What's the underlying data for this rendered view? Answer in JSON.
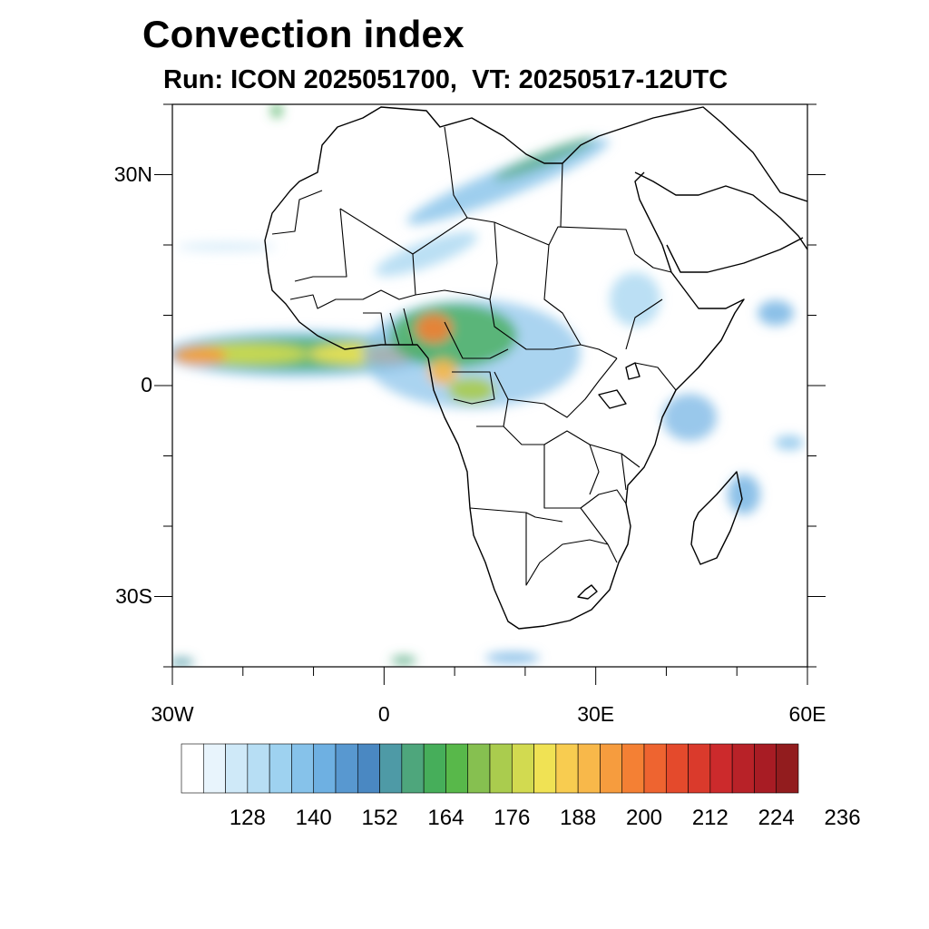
{
  "title": "Convection index",
  "subtitle": "Run: ICON 2025051700,  VT: 20250517-12UTC",
  "map": {
    "lon_range": [
      -30,
      60
    ],
    "lat_range": [
      -40,
      40
    ],
    "lat_ticks": [
      {
        "value": 30,
        "label": "30N"
      },
      {
        "value": 0,
        "label": "0"
      },
      {
        "value": -30,
        "label": "30S"
      }
    ],
    "lon_ticks": [
      {
        "value": -30,
        "label": "30W"
      },
      {
        "value": 0,
        "label": "0"
      },
      {
        "value": 30,
        "label": "30E"
      },
      {
        "value": 60,
        "label": "60E"
      }
    ]
  },
  "colorbar": {
    "colors": [
      "#ffffff",
      "#e8f4fc",
      "#cfe9f8",
      "#b7def4",
      "#9ed2f0",
      "#86c2ea",
      "#6eb0e2",
      "#5898d0",
      "#4a88c2",
      "#4e9aa6",
      "#4ea67c",
      "#46ae5a",
      "#58b84a",
      "#86c050",
      "#aacc4e",
      "#d2da50",
      "#f0e254",
      "#f8cc50",
      "#f8b84a",
      "#f69c3e",
      "#f48034",
      "#ee6430",
      "#e44a2c",
      "#da3a2c",
      "#cc2a2c",
      "#b82228",
      "#a81c24",
      "#921c1e"
    ],
    "labels": [
      "128",
      "140",
      "152",
      "164",
      "176",
      "188",
      "200",
      "212",
      "224",
      "236"
    ]
  }
}
